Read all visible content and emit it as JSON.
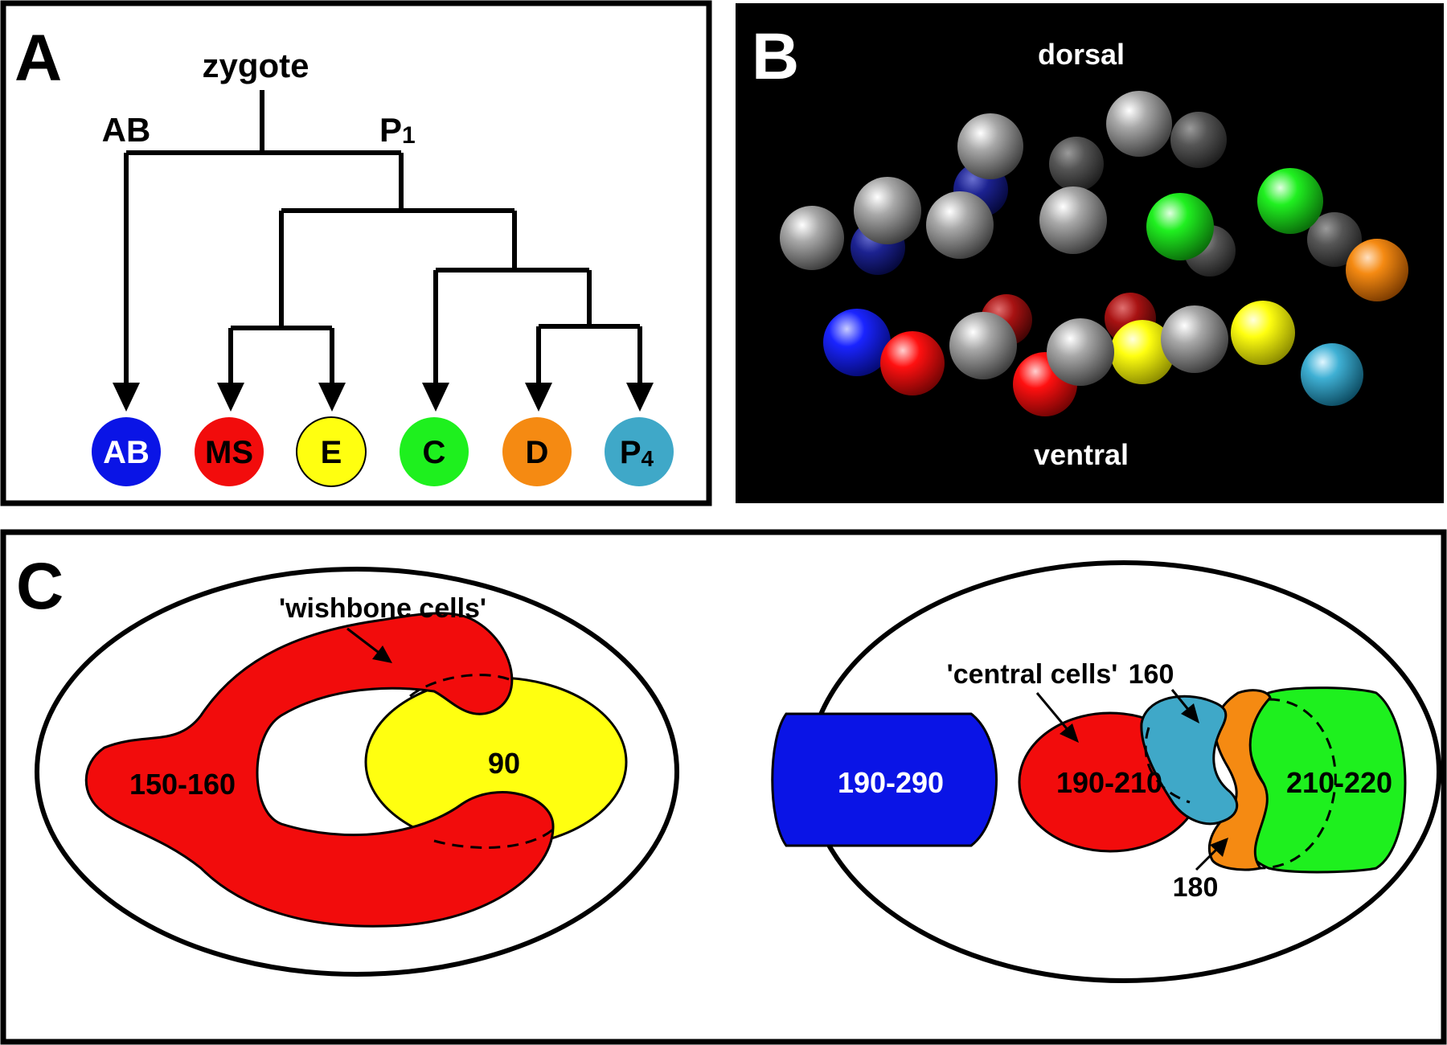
{
  "panels": {
    "a": {
      "letter": "A",
      "root_label": "zygote",
      "branch_left": "AB",
      "branch_right_main": "P",
      "branch_right_sub": "1",
      "nodes": [
        {
          "main": "AB",
          "sub": "",
          "fill": "#0a14e6",
          "text_color": "#ffffff"
        },
        {
          "main": "MS",
          "sub": "",
          "fill": "#f20c0c",
          "text_color": "#000000"
        },
        {
          "main": "E",
          "sub": "",
          "fill": "#ffff10",
          "text_color": "#000000"
        },
        {
          "main": "C",
          "sub": "",
          "fill": "#1ef01e",
          "text_color": "#000000"
        },
        {
          "main": "D",
          "sub": "",
          "fill": "#f58a12",
          "text_color": "#000000"
        },
        {
          "main": "P",
          "sub": "4",
          "fill": "#3fa8c8",
          "text_color": "#000000"
        }
      ]
    },
    "b": {
      "letter": "B",
      "label_top": "dorsal",
      "label_bottom": "ventral"
    },
    "c": {
      "letter": "C",
      "left": {
        "arrow_label": "'wishbone cells'",
        "red_label": "150-160",
        "yellow_label": "90"
      },
      "right": {
        "central_label": "'central cells'",
        "label_160": "160",
        "label_180": "180",
        "blue_label": "190-290",
        "red_label": "190-210",
        "green_label": "210-220"
      }
    }
  },
  "colors": {
    "blue": "#0a14e6",
    "red": "#f20c0c",
    "yellow": "#ffff10",
    "green": "#1ef01e",
    "orange": "#f58a12",
    "cyan": "#3fa8c8",
    "gray": "#9a9a9a",
    "dark_gray": "#555555",
    "dark_blue": "#121880",
    "dark_red": "#a01010"
  }
}
